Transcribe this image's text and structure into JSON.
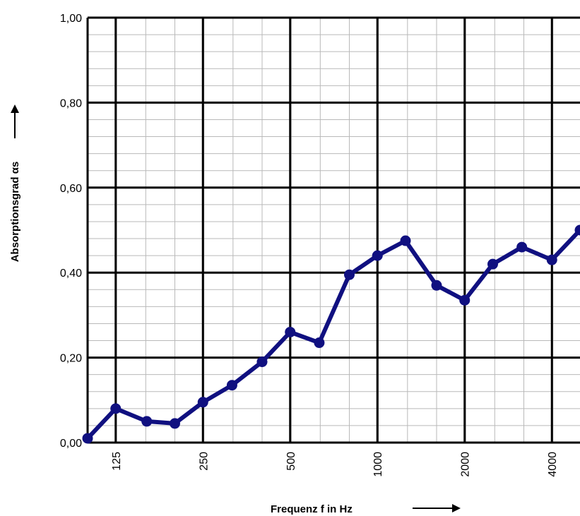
{
  "chart_data": {
    "type": "line",
    "title": "",
    "xlabel": "Frequenz f in Hz",
    "ylabel": "Absorptionsgrad αs",
    "x_scale": "log",
    "ylim": [
      0,
      1
    ],
    "y_ticks": [
      "0,00",
      "0,20",
      "0,40",
      "0,60",
      "0,80",
      "1,00"
    ],
    "x_ticks": [
      "125",
      "250",
      "500",
      "1000",
      "2000",
      "4000"
    ],
    "grid": true,
    "series": [
      {
        "color": "#101080",
        "x": [
          100,
          125,
          160,
          200,
          250,
          315,
          400,
          500,
          630,
          800,
          1000,
          1250,
          1600,
          2000,
          2500,
          3150,
          4000,
          5000
        ],
        "values": [
          0.01,
          0.08,
          0.05,
          0.045,
          0.095,
          0.135,
          0.19,
          0.26,
          0.235,
          0.395,
          0.44,
          0.475,
          0.37,
          0.335,
          0.42,
          0.46,
          0.43,
          0.5
        ]
      }
    ]
  }
}
